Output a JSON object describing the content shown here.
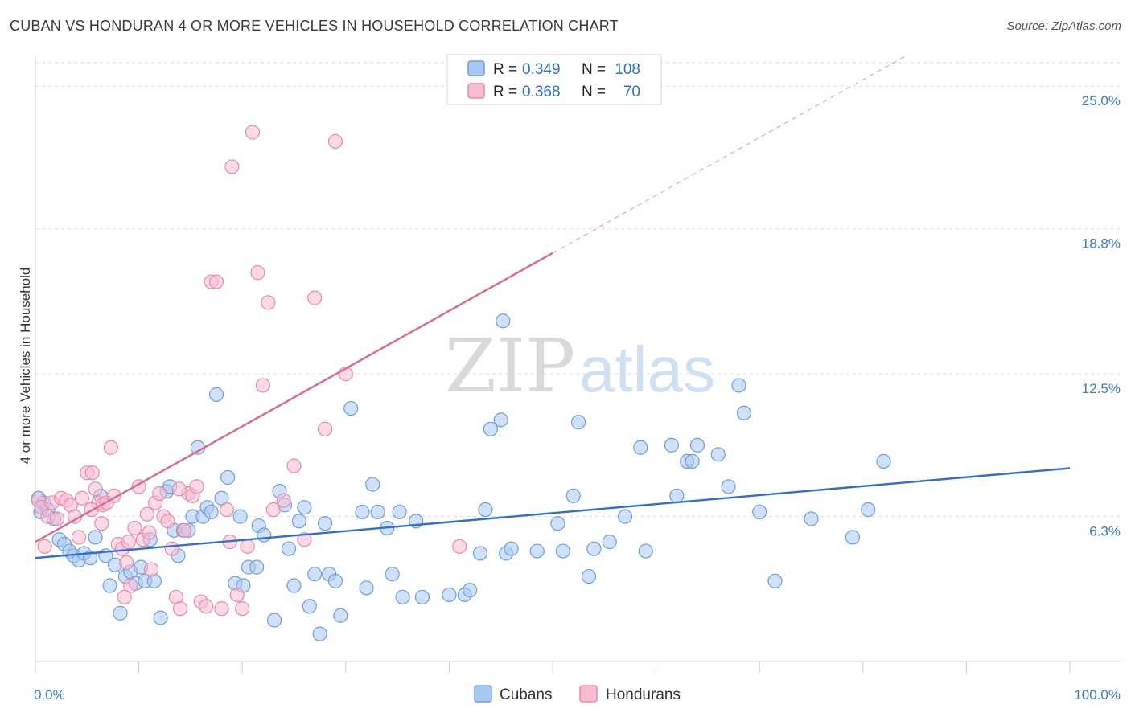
{
  "title": "CUBAN VS HONDURAN 4 OR MORE VEHICLES IN HOUSEHOLD CORRELATION CHART",
  "source": "Source: ZipAtlas.com",
  "watermark": {
    "part1": "ZIP",
    "part2": "atlas"
  },
  "colors": {
    "cubans_fill": "#a9c8f0",
    "cubans_stroke": "#6d9fde",
    "cubans_line": "#2f6fd0",
    "hondurans_fill": "#f7bcd0",
    "hondurans_stroke": "#e98aab",
    "hondurans_line": "#e06690",
    "grid": "#dddddd",
    "axis_text": "#3b7ac9"
  },
  "stats_box": {
    "rows": [
      {
        "series": "cubans",
        "r_label": "R =",
        "r_value": "0.349",
        "n_label": "N =",
        "n_value": "108"
      },
      {
        "series": "hondurans",
        "r_label": "R =",
        "r_value": "0.368",
        "n_label": "N =",
        "n_value": "70"
      }
    ]
  },
  "chart_data": {
    "type": "scatter",
    "title": "CUBAN VS HONDURAN 4 OR MORE VEHICLES IN HOUSEHOLD CORRELATION CHART",
    "xlabel": "",
    "ylabel": "4 or more Vehicles in Household",
    "xlim": [
      0,
      100
    ],
    "ylim": [
      0,
      26.3
    ],
    "x_tick_labels": [
      "0.0%",
      "100.0%"
    ],
    "y_ticks": [
      6.3,
      12.5,
      18.8,
      25.0
    ],
    "y_tick_labels": [
      "6.3%",
      "12.5%",
      "18.8%",
      "25.0%"
    ],
    "grid": true,
    "legend_position": "bottom-center",
    "series": [
      {
        "key": "cubans",
        "name": "Cubans",
        "r": 0.349,
        "n": 108,
        "trend": {
          "x0": 0,
          "y0": 4.5,
          "x1": 100,
          "y1": 8.4,
          "solid_until": 100
        },
        "points": [
          [
            0.3,
            7.1
          ],
          [
            0.5,
            6.5
          ],
          [
            0.8,
            6.9
          ],
          [
            1.2,
            6.6
          ],
          [
            1.8,
            6.2
          ],
          [
            2.3,
            5.3
          ],
          [
            2.8,
            5.1
          ],
          [
            3.3,
            4.8
          ],
          [
            3.7,
            4.6
          ],
          [
            4.2,
            4.4
          ],
          [
            4.7,
            4.7
          ],
          [
            5.3,
            4.5
          ],
          [
            5.8,
            5.4
          ],
          [
            6.3,
            7.2
          ],
          [
            6.8,
            4.6
          ],
          [
            7.2,
            3.3
          ],
          [
            7.7,
            4.2
          ],
          [
            8.2,
            2.1
          ],
          [
            8.7,
            3.7
          ],
          [
            9.2,
            3.9
          ],
          [
            9.7,
            3.4
          ],
          [
            10.2,
            4.1
          ],
          [
            10.6,
            3.5
          ],
          [
            11.1,
            5.3
          ],
          [
            11.5,
            3.5
          ],
          [
            12.1,
            1.9
          ],
          [
            12.7,
            7.4
          ],
          [
            13.0,
            7.6
          ],
          [
            13.4,
            5.7
          ],
          [
            13.8,
            4.6
          ],
          [
            14.3,
            5.7
          ],
          [
            14.8,
            5.7
          ],
          [
            15.2,
            6.3
          ],
          [
            15.7,
            9.3
          ],
          [
            16.2,
            6.3
          ],
          [
            16.6,
            6.7
          ],
          [
            17.0,
            6.5
          ],
          [
            17.5,
            11.6
          ],
          [
            18.0,
            7.1
          ],
          [
            18.6,
            8.0
          ],
          [
            19.3,
            3.4
          ],
          [
            19.8,
            6.3
          ],
          [
            20.1,
            3.3
          ],
          [
            20.6,
            4.1
          ],
          [
            21.4,
            4.1
          ],
          [
            21.6,
            5.9
          ],
          [
            22.1,
            5.5
          ],
          [
            23.1,
            1.8
          ],
          [
            23.6,
            7.4
          ],
          [
            24.1,
            6.8
          ],
          [
            24.5,
            4.9
          ],
          [
            25.0,
            3.3
          ],
          [
            25.5,
            6.1
          ],
          [
            26.0,
            6.7
          ],
          [
            26.5,
            2.4
          ],
          [
            27.0,
            3.8
          ],
          [
            27.5,
            1.2
          ],
          [
            28.0,
            6.0
          ],
          [
            28.4,
            3.8
          ],
          [
            29.0,
            3.5
          ],
          [
            29.5,
            2.0
          ],
          [
            30.5,
            11.0
          ],
          [
            31.6,
            6.5
          ],
          [
            32.0,
            3.2
          ],
          [
            32.6,
            7.7
          ],
          [
            33.1,
            6.5
          ],
          [
            34.0,
            5.8
          ],
          [
            34.5,
            3.8
          ],
          [
            35.2,
            6.5
          ],
          [
            35.5,
            2.8
          ],
          [
            36.8,
            6.1
          ],
          [
            37.4,
            2.8
          ],
          [
            40.0,
            2.9
          ],
          [
            41.5,
            2.9
          ],
          [
            42.0,
            3.1
          ],
          [
            43.0,
            4.7
          ],
          [
            43.5,
            6.6
          ],
          [
            44.0,
            10.1
          ],
          [
            45.0,
            10.5
          ],
          [
            45.5,
            4.7
          ],
          [
            46.0,
            4.9
          ],
          [
            48.5,
            4.8
          ],
          [
            50.5,
            6.0
          ],
          [
            51.0,
            4.8
          ],
          [
            52.0,
            7.2
          ],
          [
            52.5,
            10.4
          ],
          [
            53.5,
            3.7
          ],
          [
            54.0,
            4.9
          ],
          [
            55.5,
            5.2
          ],
          [
            57.0,
            6.3
          ],
          [
            58.5,
            9.3
          ],
          [
            59.0,
            4.8
          ],
          [
            61.5,
            9.4
          ],
          [
            62.0,
            7.2
          ],
          [
            63.0,
            8.7
          ],
          [
            63.5,
            8.7
          ],
          [
            64.0,
            9.4
          ],
          [
            66.0,
            9.0
          ],
          [
            67.0,
            7.6
          ],
          [
            68.0,
            12.0
          ],
          [
            68.5,
            10.8
          ],
          [
            70.0,
            6.5
          ],
          [
            71.5,
            3.5
          ],
          [
            75.0,
            6.2
          ],
          [
            79.0,
            5.4
          ],
          [
            80.5,
            6.6
          ],
          [
            82.0,
            8.7
          ],
          [
            45.2,
            14.8
          ]
        ]
      },
      {
        "key": "hondurans",
        "name": "Hondurans",
        "r": 0.368,
        "n": 70,
        "trend": {
          "x0": 0,
          "y0": 5.2,
          "x1": 100,
          "y1": 30.3,
          "solid_until": 50
        },
        "points": [
          [
            0.3,
            7.0
          ],
          [
            0.6,
            6.7
          ],
          [
            0.9,
            5.0
          ],
          [
            1.2,
            6.3
          ],
          [
            1.6,
            6.9
          ],
          [
            2.1,
            6.2
          ],
          [
            2.5,
            7.1
          ],
          [
            3.0,
            7.0
          ],
          [
            3.4,
            6.8
          ],
          [
            3.8,
            6.3
          ],
          [
            4.2,
            5.4
          ],
          [
            4.5,
            7.1
          ],
          [
            5.0,
            8.2
          ],
          [
            5.5,
            8.2
          ],
          [
            5.8,
            7.5
          ],
          [
            6.1,
            6.9
          ],
          [
            6.5,
            6.8
          ],
          [
            6.9,
            6.9
          ],
          [
            7.3,
            9.3
          ],
          [
            7.6,
            7.2
          ],
          [
            8.0,
            5.1
          ],
          [
            8.4,
            4.9
          ],
          [
            8.8,
            4.3
          ],
          [
            9.2,
            3.3
          ],
          [
            9.6,
            5.8
          ],
          [
            10.0,
            7.6
          ],
          [
            10.4,
            5.3
          ],
          [
            10.8,
            6.4
          ],
          [
            11.2,
            4.0
          ],
          [
            11.6,
            6.9
          ],
          [
            12.0,
            7.3
          ],
          [
            12.4,
            6.3
          ],
          [
            12.8,
            6.1
          ],
          [
            13.2,
            4.9
          ],
          [
            13.6,
            2.8
          ],
          [
            14.0,
            2.3
          ],
          [
            14.4,
            5.7
          ],
          [
            14.8,
            7.3
          ],
          [
            15.2,
            7.2
          ],
          [
            15.6,
            7.6
          ],
          [
            16.0,
            2.6
          ],
          [
            16.5,
            2.4
          ],
          [
            17.0,
            16.5
          ],
          [
            17.5,
            16.5
          ],
          [
            18.0,
            2.3
          ],
          [
            18.5,
            6.6
          ],
          [
            19.0,
            21.5
          ],
          [
            19.5,
            2.9
          ],
          [
            20.0,
            2.3
          ],
          [
            20.5,
            5.0
          ],
          [
            21.0,
            23.0
          ],
          [
            21.5,
            16.9
          ],
          [
            22.0,
            12.0
          ],
          [
            22.5,
            15.6
          ],
          [
            23.0,
            6.6
          ],
          [
            24.0,
            7.0
          ],
          [
            25.0,
            8.5
          ],
          [
            26.0,
            5.3
          ],
          [
            27.0,
            15.8
          ],
          [
            28.0,
            10.1
          ],
          [
            29.0,
            22.6
          ],
          [
            30.0,
            12.5
          ],
          [
            41.0,
            5.0
          ],
          [
            6.4,
            6.0
          ],
          [
            9.0,
            5.2
          ],
          [
            11.0,
            5.6
          ],
          [
            5.4,
            6.6
          ],
          [
            8.6,
            2.8
          ],
          [
            13.9,
            7.5
          ],
          [
            18.8,
            5.2
          ]
        ]
      }
    ]
  }
}
